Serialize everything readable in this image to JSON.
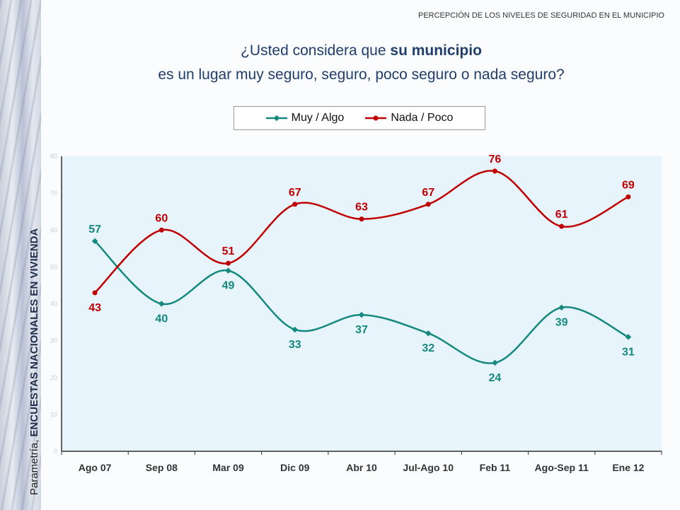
{
  "header": "PERCEPCIÓN DE LOS NIVELES DE SEGURIDAD EN EL MUNICIPIO",
  "question": {
    "line1_pre": "¿Usted considera que ",
    "line1_bold": "su municipio",
    "line2": "es un lugar muy seguro, seguro, poco seguro o nada seguro?"
  },
  "side_label": {
    "normal": "Parametría, ",
    "bold": "ENCUESTAS NACIONALES EN VIVIENDA"
  },
  "colors": {
    "muy": "#13897f",
    "nada": "#c00000",
    "plot_bg": "#e8f4fc"
  },
  "chart_data": {
    "type": "line",
    "categories": [
      "Ago 07",
      "Sep 08",
      "Mar 09",
      "Dic 09",
      "Abr 10",
      "Jul-Ago 10",
      "Feb 11",
      "Ago-Sep 11",
      "Ene 12"
    ],
    "series": [
      {
        "name": "Muy / Algo",
        "values": [
          57,
          40,
          49,
          33,
          37,
          32,
          24,
          39,
          31
        ]
      },
      {
        "name": "Nada / Poco",
        "values": [
          43,
          60,
          51,
          67,
          63,
          67,
          76,
          61,
          69
        ]
      }
    ],
    "ylim": [
      0,
      80
    ],
    "yticks": [
      "0",
      "10",
      "20",
      "30",
      "40",
      "50",
      "60",
      "70",
      "80"
    ],
    "legend": "top"
  }
}
